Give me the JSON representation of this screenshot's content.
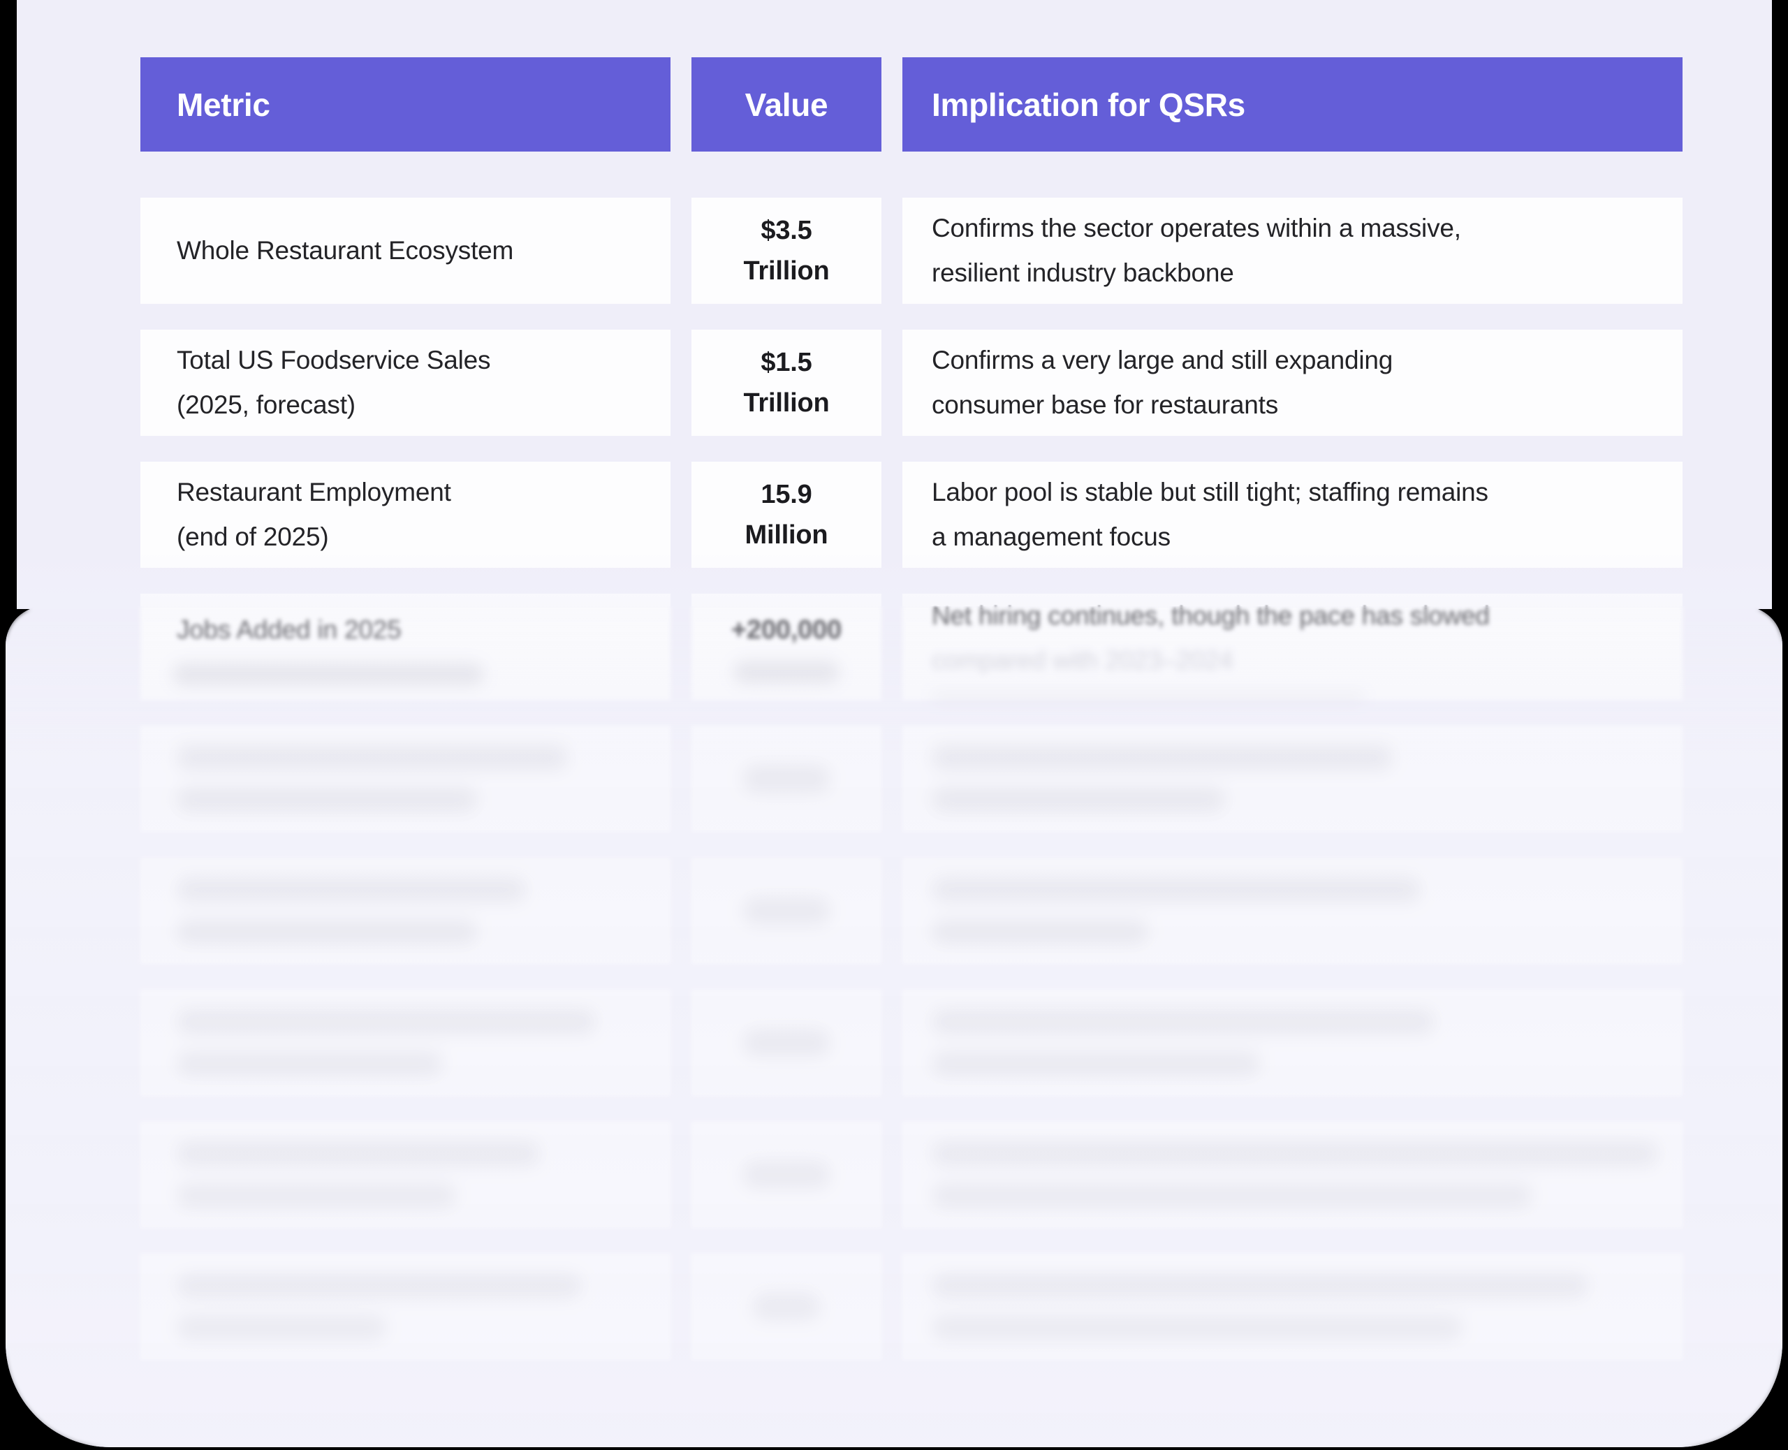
{
  "colors": {
    "backdrop": "#000000",
    "page_background": "#efeef9",
    "card_background": "#fdfdfe",
    "header_background": "#645ed8",
    "header_text": "#ffffff",
    "body_text": "#232327"
  },
  "table": {
    "columns": [
      "Metric",
      "Value",
      "Implication for QSRs"
    ],
    "rows": [
      {
        "metric_lines": [
          "Whole Restaurant Ecosystem"
        ],
        "value_lines": [
          "$3.5",
          "Trillion"
        ],
        "implication_lines": [
          "Confirms the sector operates within a massive,",
          "resilient industry backbone"
        ]
      },
      {
        "metric_lines": [
          "Total US Foodservice Sales",
          "(2025, forecast)"
        ],
        "value_lines": [
          "$1.5",
          "Trillion"
        ],
        "implication_lines": [
          "Confirms a very large and still expanding",
          "consumer base for restaurants"
        ]
      },
      {
        "metric_lines": [
          "Restaurant Employment",
          "(end of 2025)"
        ],
        "value_lines": [
          "15.9",
          "Million"
        ],
        "implication_lines": [
          "Labor pool is stable but still tight; staffing remains",
          "a management focus"
        ]
      },
      {
        "metric_lines": [
          "Jobs Added in 2025"
        ],
        "value_lines": [
          "+200,000"
        ],
        "implication_lines": [
          "Net hiring continues, though the pace has slowed",
          "compared with 2023–2024"
        ],
        "faded": true
      },
      {
        "redacted": true
      },
      {
        "redacted": true
      },
      {
        "redacted": true
      },
      {
        "redacted": true
      },
      {
        "redacted": true
      }
    ],
    "redacted_rows_count": 5
  }
}
